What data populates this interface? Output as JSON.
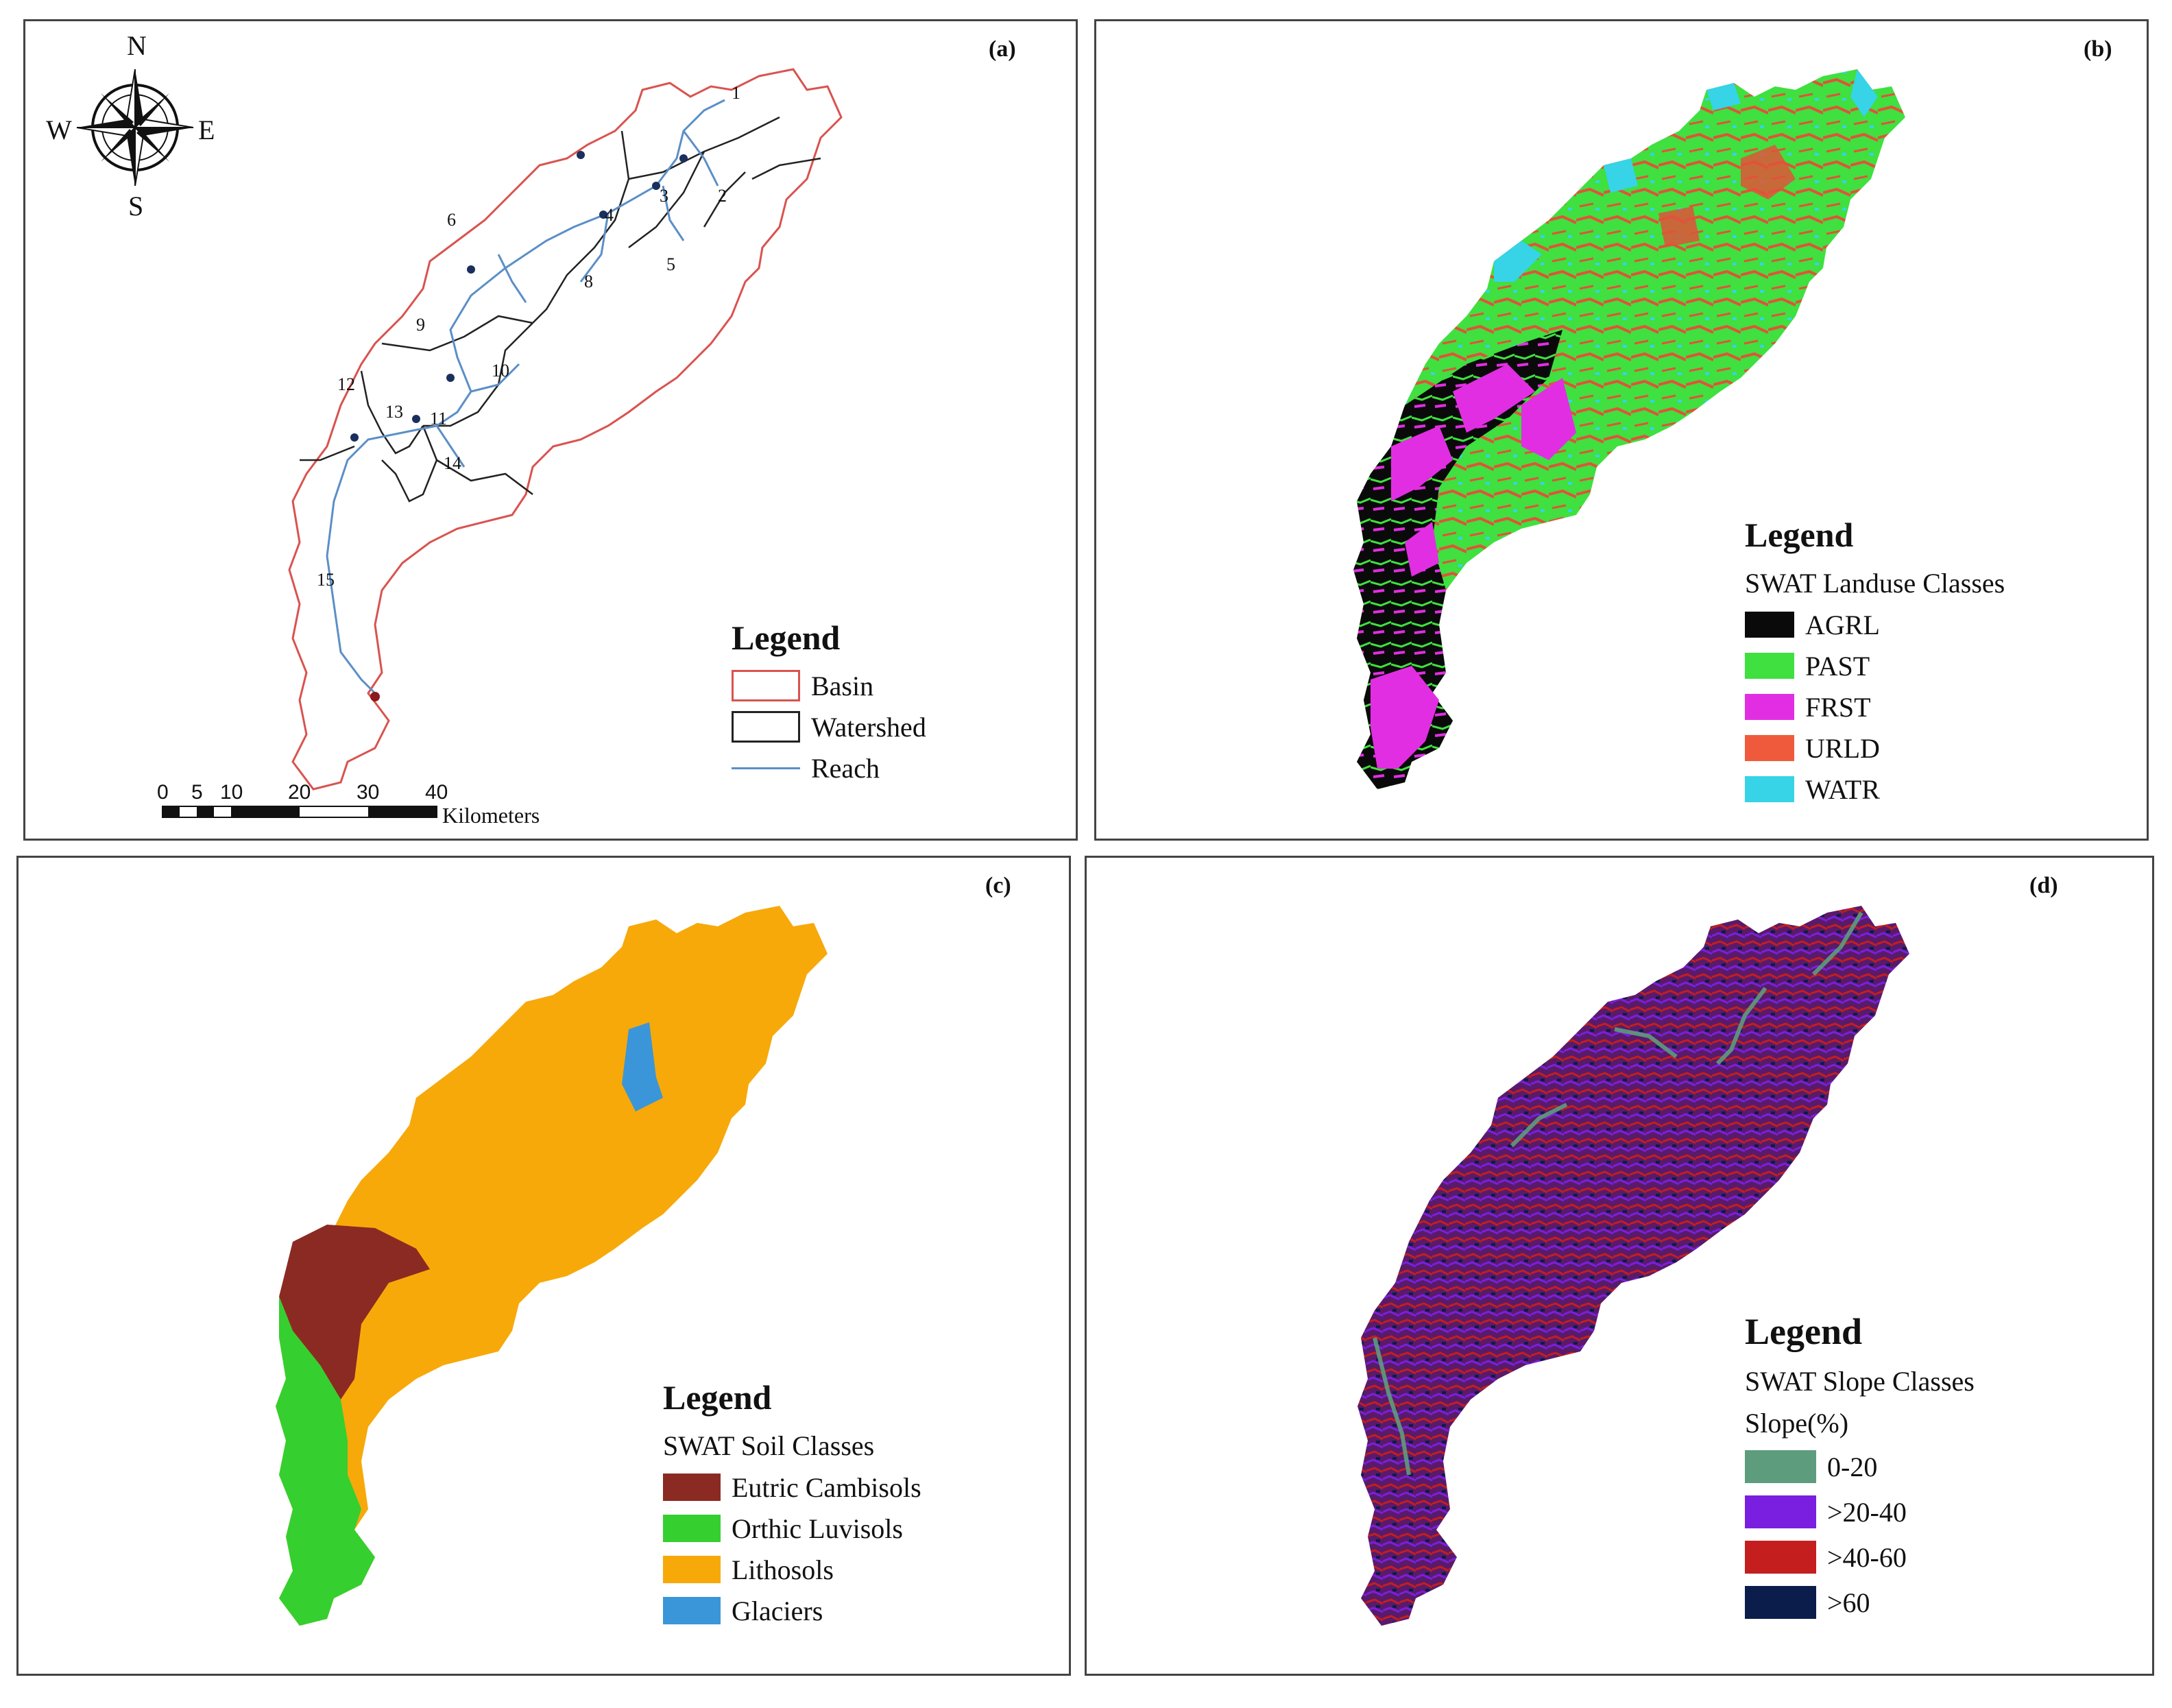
{
  "panels": {
    "a": {
      "label": "(a)",
      "compass": {
        "n": "N",
        "s": "S",
        "e": "E",
        "w": "W"
      },
      "subbasin_numbers": [
        "1",
        "2",
        "3",
        "4",
        "5",
        "6",
        "8",
        "9",
        "10",
        "11",
        "12",
        "13",
        "14",
        "15"
      ],
      "legend": {
        "title": "Legend",
        "items": [
          {
            "label": "Basin",
            "color": "#d9534f"
          },
          {
            "label": "Watershed",
            "color": "#222222"
          },
          {
            "label": "Reach",
            "color": "#5b8fc7"
          }
        ]
      },
      "scalebar": {
        "ticks": [
          "0",
          "5",
          "10",
          "20",
          "30",
          "40"
        ],
        "unit": "Kilometers"
      }
    },
    "b": {
      "label": "(b)",
      "legend": {
        "title": "Legend",
        "subtitle": "SWAT Landuse Classes",
        "items": [
          {
            "label": "AGRL",
            "color": "#0a0a0a"
          },
          {
            "label": "PAST",
            "color": "#3fe03f"
          },
          {
            "label": "FRST",
            "color": "#e22ee2"
          },
          {
            "label": "URLD",
            "color": "#f05a3c"
          },
          {
            "label": "WATR",
            "color": "#37d3e6"
          }
        ]
      }
    },
    "c": {
      "label": "(c)",
      "legend": {
        "title": "Legend",
        "subtitle": "SWAT Soil Classes",
        "items": [
          {
            "label": "Eutric Cambisols",
            "color": "#8b2a22"
          },
          {
            "label": "Orthic Luvisols",
            "color": "#35cf2f"
          },
          {
            "label": "Lithosols",
            "color": "#f7a90a"
          },
          {
            "label": "Glaciers",
            "color": "#3a96d8"
          }
        ]
      }
    },
    "d": {
      "label": "(d)",
      "legend": {
        "title": "Legend",
        "subtitle": "SWAT Slope Classes",
        "subtitle2": "Slope(%)",
        "items": [
          {
            "label": "0-20",
            "color": "#5e9c7e"
          },
          {
            "label": ">20-40",
            "color": "#7a1fe0"
          },
          {
            "label": ">40-60",
            "color": "#c41e1e"
          },
          {
            "label": ">60",
            "color": "#0b1d4a"
          }
        ]
      }
    }
  }
}
